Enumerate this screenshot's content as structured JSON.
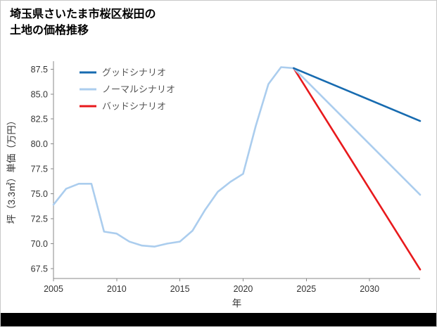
{
  "header": {
    "title_line1": "埼玉県さいたま市桜区桜田の",
    "title_line2": "土地の価格推移"
  },
  "footer": {
    "bar_color": "#000000"
  },
  "chart_data": {
    "type": "line",
    "title": "埼玉県さいたま市桜区桜田の土地の価格推移",
    "xlabel": "年",
    "ylabel": "坪（3.3㎡）単価（万円）",
    "grid": false,
    "legend_position": "upper left",
    "axis_color": "#888888",
    "line_width": 2.6,
    "xlim": [
      2005,
      2034
    ],
    "ylim": [
      66.5,
      88.3
    ],
    "xticks": [
      {
        "value": 2005,
        "label": "2005"
      },
      {
        "value": 2010,
        "label": "2010"
      },
      {
        "value": 2015,
        "label": "2015"
      },
      {
        "value": 2020,
        "label": "2020"
      },
      {
        "value": 2025,
        "label": "2025"
      },
      {
        "value": 2030,
        "label": "2030"
      }
    ],
    "yticks": [
      {
        "value": 67.5,
        "label": "67.5"
      },
      {
        "value": 70.0,
        "label": "70.0"
      },
      {
        "value": 72.5,
        "label": "72.5"
      },
      {
        "value": 75.0,
        "label": "75.0"
      },
      {
        "value": 77.5,
        "label": "77.5"
      },
      {
        "value": 80.0,
        "label": "80.0"
      },
      {
        "value": 82.5,
        "label": "82.5"
      },
      {
        "value": 85.0,
        "label": "85.0"
      },
      {
        "value": 87.5,
        "label": "87.5"
      }
    ],
    "series": [
      {
        "key": "good-scenario",
        "name": "グッドシナリオ",
        "color": "#176bb0",
        "x": [
          2024,
          2034
        ],
        "y": [
          87.6,
          82.3
        ]
      },
      {
        "key": "normal-scenario",
        "name": "ノーマルシナリオ",
        "color": "#abcdee",
        "x": [
          2005,
          2006,
          2007,
          2008,
          2009,
          2010,
          2011,
          2012,
          2013,
          2014,
          2015,
          2016,
          2017,
          2018,
          2019,
          2020,
          2021,
          2022,
          2023,
          2024,
          2034
        ],
        "y": [
          73.9,
          75.5,
          76.0,
          76.0,
          71.2,
          71.0,
          70.2,
          69.8,
          69.7,
          70.0,
          70.2,
          71.3,
          73.4,
          75.2,
          76.2,
          77.0,
          81.8,
          86.0,
          87.7,
          87.6,
          74.9
        ]
      },
      {
        "key": "bad-scenario",
        "name": "バッドシナリオ",
        "color": "#e8191c",
        "x": [
          2024,
          2034
        ],
        "y": [
          87.6,
          67.4
        ]
      }
    ]
  }
}
